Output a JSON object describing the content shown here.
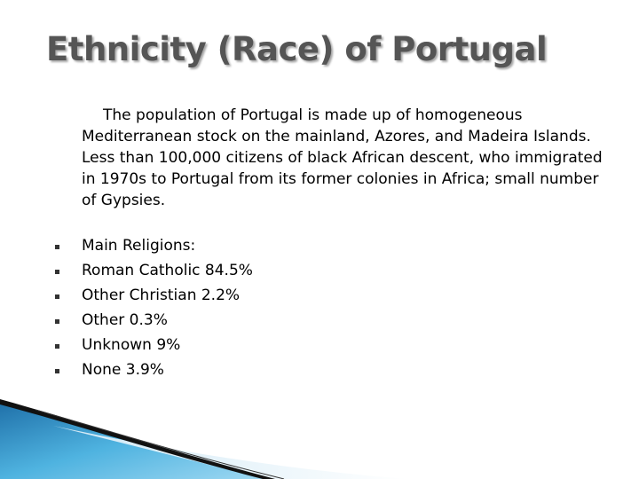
{
  "title": "Ethnicity (Race) of Portugal",
  "paragraph": "The population of Portugal is made up of homogeneous Mediterranean stock on the mainland, Azores, and Madeira Islands. Less than 100,000 citizens of black African descent, who immigrated in 1970s to Portugal from its former colonies in Africa; small number of Gypsies.",
  "bullets": [
    "Main Religions:",
    "Roman Catholic 84.5%",
    "Other Christian 2.2%",
    "Other 0.3%",
    "Unknown 9%",
    "None 3.9%"
  ]
}
